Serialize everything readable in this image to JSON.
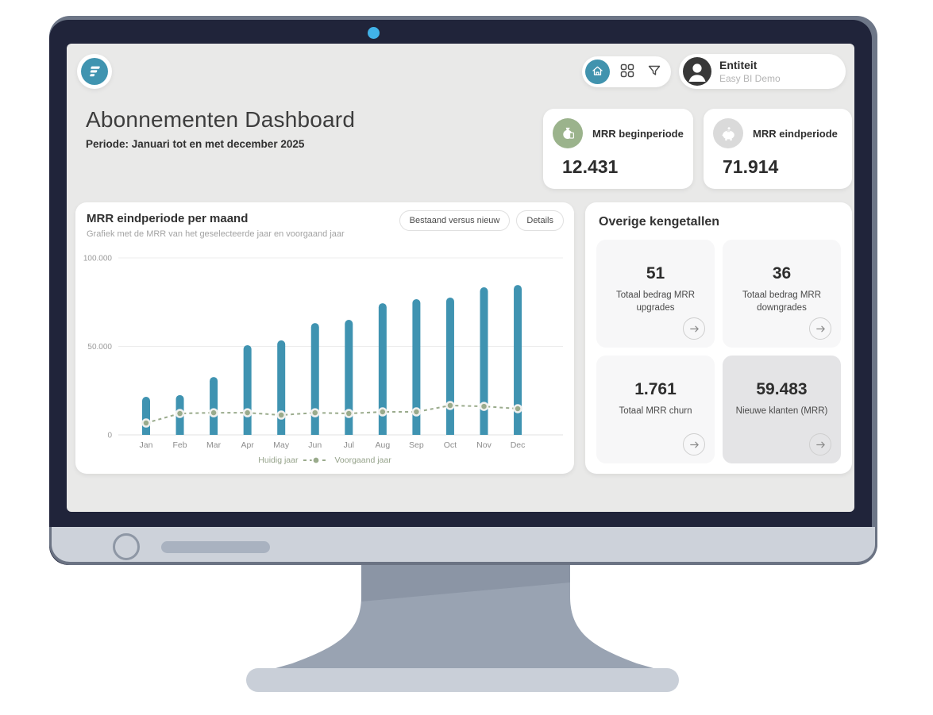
{
  "header": {
    "nav": {
      "icons": [
        "home-icon",
        "grid-icon",
        "filter-icon"
      ],
      "active": "home"
    },
    "entity": {
      "label": "Entiteit",
      "sublabel": "Easy BI Demo"
    }
  },
  "page": {
    "title": "Abonnementen Dashboard",
    "subtitle": "Periode: Januari tot en met december 2025"
  },
  "kpis": [
    {
      "label": "MRR beginperiode",
      "value": "12.431",
      "icon": "money-bag-icon",
      "icon_bg": "#9bb38c"
    },
    {
      "label": "MRR eindperiode",
      "value": "71.914",
      "icon": "piggy-bank-icon",
      "icon_bg": "#dadada"
    }
  ],
  "chart_card": {
    "title": "MRR eindperiode per maand",
    "subtitle": "Grafiek met de MRR van het geselecteerde jaar en voorgaand jaar",
    "buttons": [
      "Bestaand versus nieuw",
      "Details"
    ]
  },
  "chart_data": {
    "type": "bar",
    "categories": [
      "Jan",
      "Feb",
      "Mar",
      "Apr",
      "May",
      "Jun",
      "Jul",
      "Aug",
      "Sep",
      "Oct",
      "Nov",
      "Dec"
    ],
    "series": [
      {
        "name": "Huidig jaar",
        "type": "bar",
        "color": "#3f93b1",
        "values": [
          21500,
          22500,
          32700,
          50700,
          53400,
          63200,
          65000,
          74400,
          76700,
          77600,
          83400,
          84700
        ]
      },
      {
        "name": "Voorgaand jaar",
        "type": "line",
        "color": "#9aab8c",
        "values": [
          6700,
          12100,
          12500,
          12500,
          11200,
          12500,
          12100,
          13000,
          13000,
          16600,
          16100,
          14800
        ]
      }
    ],
    "ylim": [
      0,
      100000
    ],
    "ytick_values": [
      0,
      50000,
      100000
    ],
    "ytick_labels": [
      "0",
      "50.000",
      "100.000"
    ],
    "grid": true,
    "legend_position": "bottom",
    "legend": [
      "Huidig jaar",
      "Voorgaand jaar"
    ]
  },
  "stats_panel": {
    "title": "Overige kengetallen",
    "tiles": [
      {
        "value": "51",
        "label": "Totaal bedrag MRR upgrades",
        "highlighted": false
      },
      {
        "value": "36",
        "label": "Totaal bedrag MRR downgrades",
        "highlighted": false
      },
      {
        "value": "1.761",
        "label": "Totaal MRR churn",
        "highlighted": false
      },
      {
        "value": "59.483",
        "label": "Nieuwe klanten (MRR)",
        "highlighted": true
      }
    ]
  },
  "colors": {
    "accent_teal": "#4094b0",
    "sage_green": "#9aab8c",
    "bezel_navy": "#20243a",
    "webcam_blue": "#41b2e8",
    "screen_bg": "#e9e9e8",
    "tile_bg": "#f7f7f8",
    "tile_highlight": "#e4e4e6"
  }
}
